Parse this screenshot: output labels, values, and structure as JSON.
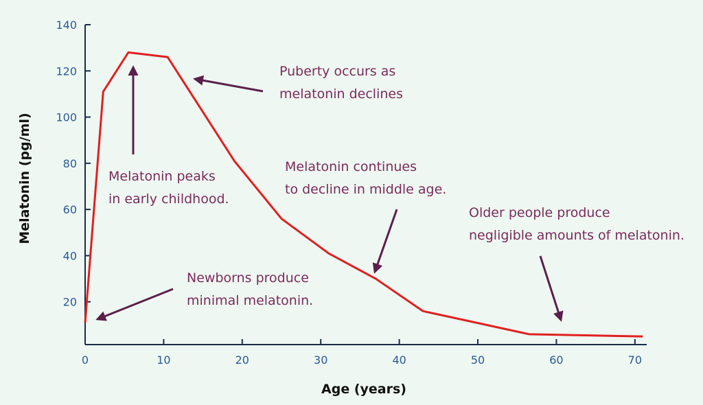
{
  "chart_data": {
    "type": "line",
    "x_label": "Age (years)",
    "y_label": "Melatonin (pg/ml)",
    "x": [
      0,
      2.3,
      5.5,
      10.5,
      19,
      25,
      31,
      37,
      43,
      56.5,
      71
    ],
    "series": [
      {
        "color": "#e02020",
        "values": [
          11,
          111,
          128,
          126,
          81,
          56,
          41,
          30,
          16,
          6,
          5
        ]
      }
    ],
    "xlim": [
      0,
      71.5
    ],
    "ylim": [
      0,
      140
    ],
    "xticks": [
      0,
      10,
      20,
      30,
      40,
      50,
      60,
      70
    ],
    "yticks": [
      20,
      40,
      60,
      80,
      100,
      120,
      140
    ],
    "annotations": [
      [
        "Puberty occurs as",
        "melatonin declines"
      ],
      [
        "Melatonin peaks",
        "in early childhood."
      ],
      [
        "Melatonin continues",
        "to decline in middle age."
      ],
      [
        "Older people produce",
        "negligible amounts of melatonin."
      ],
      [
        "Newborns produce",
        "minimal melatonin."
      ]
    ]
  }
}
